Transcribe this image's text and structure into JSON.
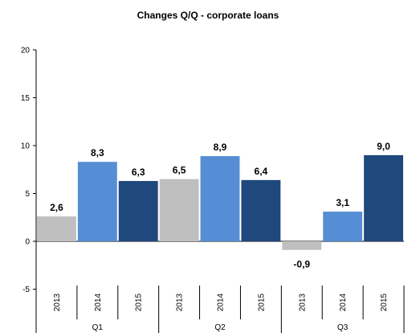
{
  "chart_data": {
    "type": "bar",
    "title": "Changes Q/Q - corporate loans",
    "xlabel": "",
    "ylabel": "",
    "ylim": [
      -10,
      20
    ],
    "yticks": [
      -5,
      0,
      5,
      10,
      15,
      20
    ],
    "groups": [
      "Q1",
      "Q2",
      "Q3"
    ],
    "categories": [
      "2013",
      "2014",
      "2015",
      "2013",
      "2014",
      "2015",
      "2013",
      "2014",
      "2015"
    ],
    "values": [
      2.6,
      8.3,
      6.3,
      6.5,
      8.9,
      6.4,
      -0.9,
      3.1,
      9.0
    ],
    "value_labels": [
      "2,6",
      "8,3",
      "6,3",
      "6,5",
      "8,9",
      "6,4",
      "-0,9",
      "3,1",
      "9,0"
    ],
    "colors": {
      "2013": "#bfbfbf",
      "2014": "#558ed5",
      "2015": "#1f497d"
    },
    "grid": false,
    "legend": "none"
  }
}
